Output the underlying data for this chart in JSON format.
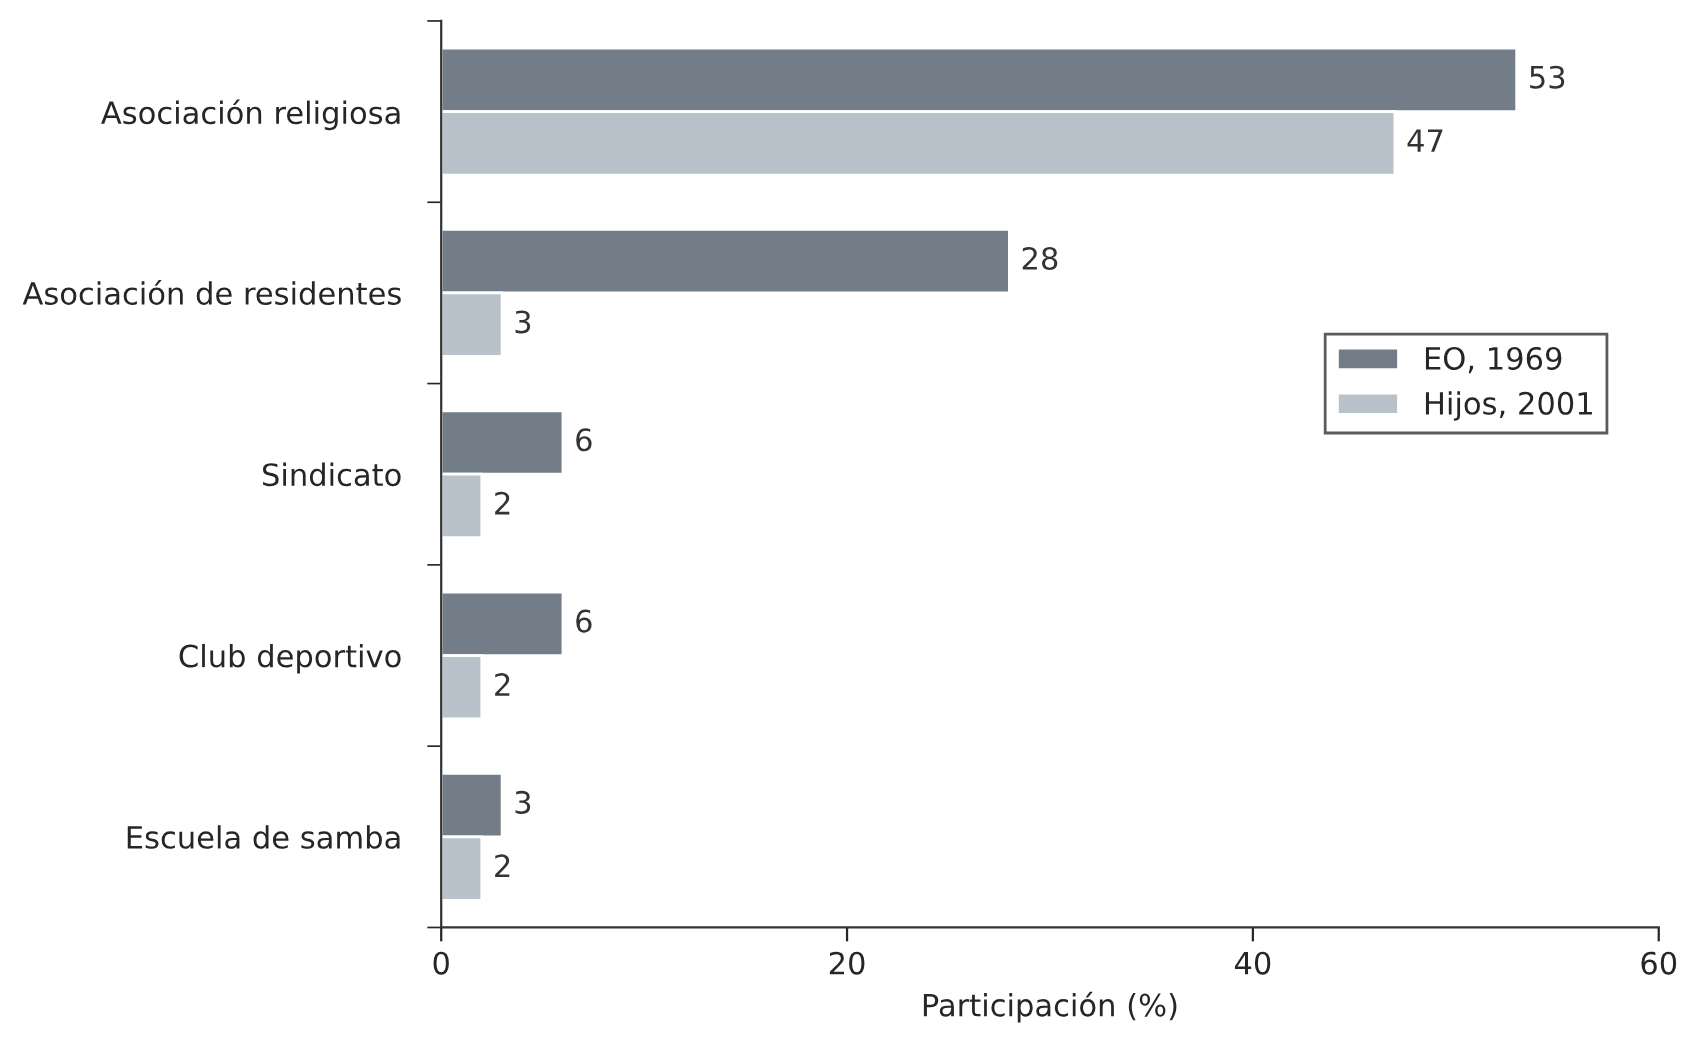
{
  "chart_data": {
    "type": "bar",
    "orientation": "horizontal",
    "xlabel": "Participación (%)",
    "categories": [
      "Asociación religiosa",
      "Asociación de residentes",
      "Sindicato",
      "Club deportivo",
      "Escuela de samba"
    ],
    "series": [
      {
        "name": "EO, 1969",
        "color": "#737d87",
        "values": [
          53,
          28,
          6,
          6,
          3
        ]
      },
      {
        "name": "Hijos, 2001",
        "color": "#b9c2cb",
        "values": [
          47,
          3,
          2,
          2,
          2
        ]
      }
    ],
    "xlim": [
      0,
      60
    ],
    "xticks": [
      0,
      20,
      40,
      60
    ],
    "data_labels": true,
    "legend": "center right",
    "grid": false
  }
}
